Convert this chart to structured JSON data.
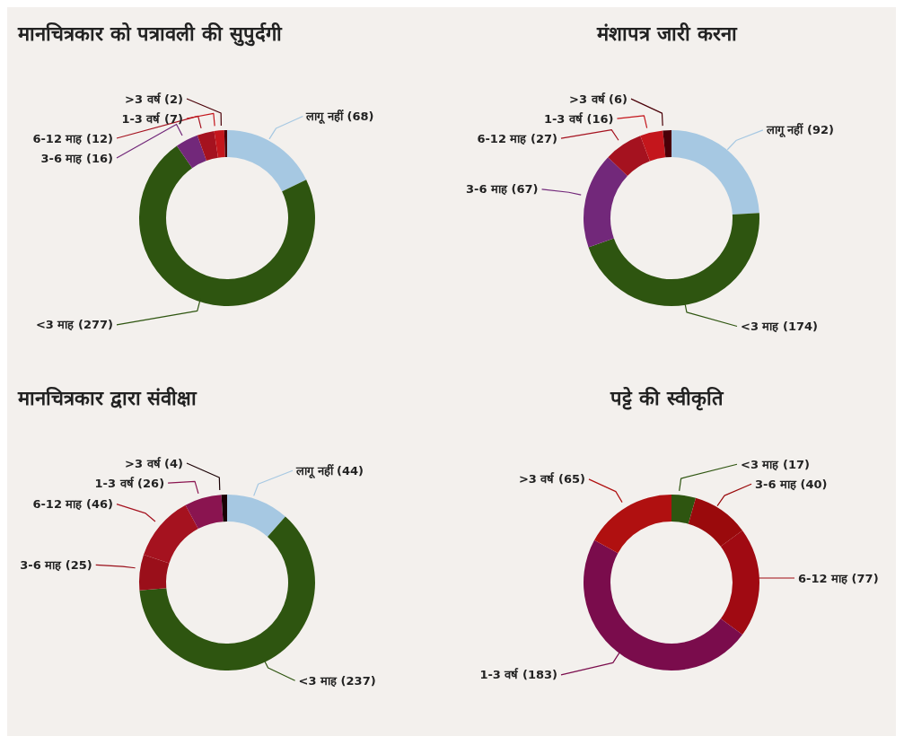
{
  "chart_data": [
    {
      "type": "donut",
      "title": "मानचित्रकार  को पत्रावली की सुपुर्दगी",
      "categories": [
        "लागू नहीं",
        "<3 माह",
        "3-6 माह",
        "6-12 माह",
        "1-3 वर्ष",
        ">3 वर्ष"
      ],
      "values": [
        68,
        277,
        16,
        12,
        7,
        2
      ],
      "value_labels": [
        "(68)",
        "(277)",
        "(16)",
        "(12)",
        "(7)",
        "(2)"
      ],
      "colors": [
        "#a6c8e2",
        "#2e5510",
        "#72287a",
        "#a5121f",
        "#c4161c",
        "#4a0008"
      ]
    },
    {
      "type": "donut",
      "title": "मंशापत्र जारी करना",
      "categories": [
        "लागू नहीं",
        "<3 माह",
        "3-6 माह",
        "6-12 माह",
        "1-3 वर्ष",
        ">3 वर्ष"
      ],
      "values": [
        92,
        174,
        67,
        27,
        16,
        6
      ],
      "value_labels": [
        "(92)",
        "(174)",
        "(67)",
        "(27)",
        "(16)",
        "(6)"
      ],
      "colors": [
        "#a6c8e2",
        "#2e5510",
        "#72287a",
        "#a5121f",
        "#c4161c",
        "#4a0008"
      ]
    },
    {
      "type": "donut",
      "title": "मानचित्रकार द्वारा संवीक्षा",
      "categories": [
        "लागू नहीं",
        "<3 माह",
        "3-6 माह",
        "6-12 माह",
        "1-3 वर्ष",
        ">3 वर्ष"
      ],
      "values": [
        44,
        237,
        25,
        46,
        26,
        4
      ],
      "value_labels": [
        "(44)",
        "(237)",
        "(25)",
        "(46)",
        "(26)",
        "(4)"
      ],
      "colors": [
        "#a6c8e2",
        "#2e5510",
        "#9a0f1a",
        "#a5121f",
        "#8a1450",
        "#1a0004"
      ]
    },
    {
      "type": "donut",
      "title": "पट्टे की स्वीकृति",
      "categories": [
        "<3 माह",
        "3-6 माह",
        "6-12 माह",
        "1-3 वर्ष",
        ">3 वर्ष"
      ],
      "values": [
        17,
        40,
        77,
        183,
        65
      ],
      "value_labels": [
        "(17)",
        "(40)",
        "(77)",
        "(183)",
        "(65)"
      ],
      "colors": [
        "#2e5510",
        "#9a0a0c",
        "#a00a12",
        "#7a0c4c",
        "#b01010"
      ]
    }
  ]
}
